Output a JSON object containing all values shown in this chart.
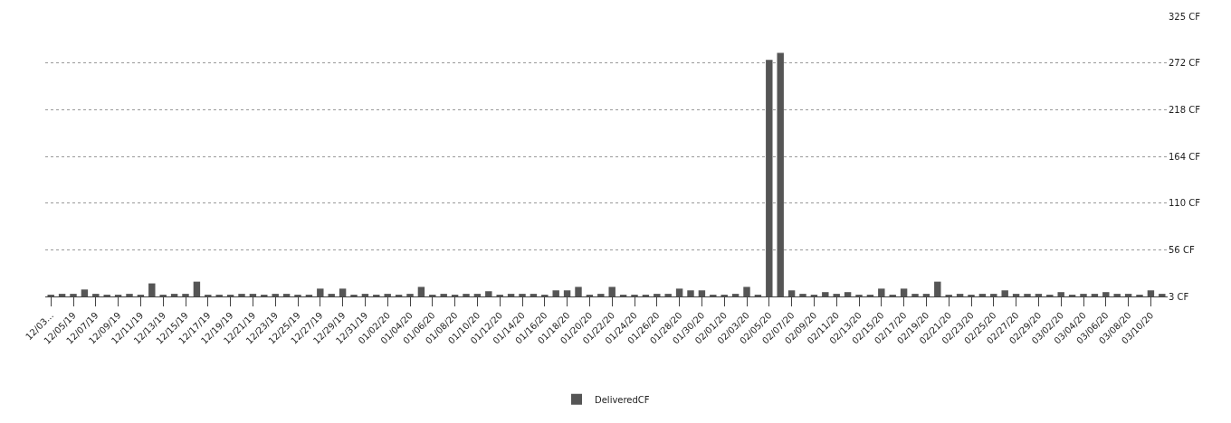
{
  "chart_data": {
    "type": "bar",
    "categories": [
      "12/03...",
      null,
      "12/05/19",
      null,
      "12/07/19",
      null,
      "12/09/19",
      null,
      "12/11/19",
      null,
      "12/13/19",
      null,
      "12/15/19",
      null,
      "12/17/19",
      null,
      "12/19/19",
      null,
      "12/21/19",
      null,
      "12/23/19",
      null,
      "12/25/19",
      null,
      "12/27/19",
      null,
      "12/29/19",
      null,
      "12/31/19",
      null,
      "01/02/20",
      null,
      "01/04/20",
      null,
      "01/06/20",
      null,
      "01/08/20",
      null,
      "01/10/20",
      null,
      "01/12/20",
      null,
      "01/14/20",
      null,
      "01/16/20",
      null,
      "01/18/20",
      null,
      "01/20/20",
      null,
      "01/22/20",
      null,
      "01/24/20",
      null,
      "01/26/20",
      null,
      "01/28/20",
      null,
      "01/30/20",
      null,
      "02/01/20",
      null,
      "02/03/20",
      null,
      "02/05/20",
      null,
      "02/07/20",
      null,
      "02/09/20",
      null,
      "02/11/20",
      null,
      "02/13/20",
      null,
      "02/15/20",
      null,
      "02/17/20",
      null,
      "02/19/20",
      null,
      "02/21/20",
      null,
      "02/23/20",
      null,
      "02/25/20",
      null,
      "02/27/20",
      null,
      "02/29/20",
      null,
      "03/02/20",
      null,
      "03/04/20",
      null,
      "03/06/20",
      null,
      "03/08/20",
      null,
      "03/10/20",
      null
    ],
    "series": [
      {
        "name": "DeliveredCF",
        "color": "#555555",
        "values": [
          5,
          6,
          6,
          11,
          6,
          5,
          5,
          6,
          5,
          18,
          5,
          6,
          6,
          20,
          5,
          5,
          5,
          6,
          6,
          5,
          6,
          6,
          5,
          5,
          12,
          6,
          12,
          5,
          6,
          5,
          6,
          5,
          6,
          14,
          5,
          6,
          5,
          6,
          6,
          9,
          5,
          6,
          6,
          6,
          5,
          10,
          10,
          14,
          5,
          6,
          14,
          5,
          5,
          5,
          6,
          6,
          12,
          10,
          10,
          5,
          5,
          6,
          14,
          5,
          275,
          283,
          10,
          6,
          5,
          8,
          6,
          8,
          5,
          5,
          12,
          5,
          12,
          6,
          6,
          20,
          5,
          6,
          5,
          6,
          6,
          10,
          6,
          6,
          6,
          5,
          8,
          5,
          6,
          6,
          8,
          6,
          6,
          5,
          10,
          6
        ]
      }
    ],
    "ylim": [
      3,
      325
    ],
    "yticks": [
      {
        "value": 3,
        "label": "3 CF"
      },
      {
        "value": 56,
        "label": "56 CF"
      },
      {
        "value": 110,
        "label": "110 CF"
      },
      {
        "value": 164,
        "label": "164 CF"
      },
      {
        "value": 218,
        "label": "218 CF"
      },
      {
        "value": 272,
        "label": "272 CF"
      },
      {
        "value": 325,
        "label": "325 CF"
      }
    ],
    "grid": "y",
    "legend": "bottom"
  }
}
